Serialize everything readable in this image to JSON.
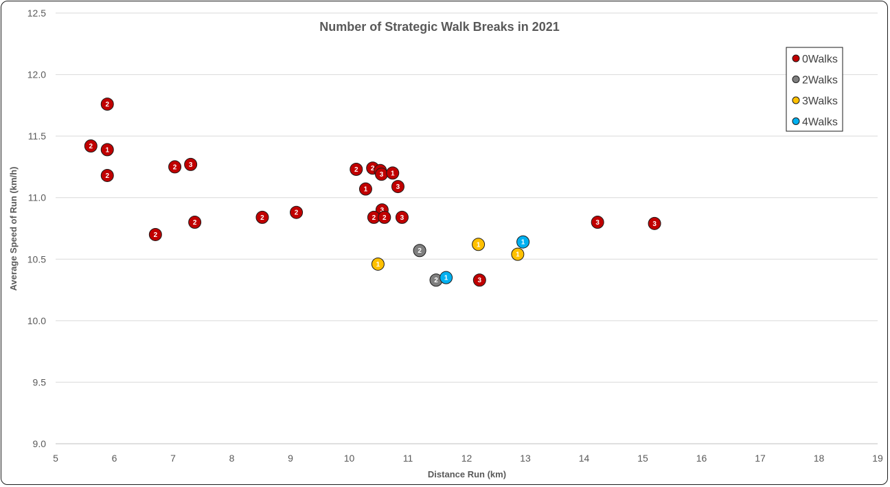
{
  "chart_data": {
    "type": "scatter",
    "title": "Number of Strategic Walk Breaks in 2021",
    "xlabel": "Distance Run (km)",
    "ylabel": "Average Speed of Run (km/h)",
    "xlim": [
      5,
      19
    ],
    "ylim": [
      9.0,
      12.5
    ],
    "x_ticks": [
      "5",
      "6",
      "7",
      "8",
      "9",
      "10",
      "11",
      "12",
      "13",
      "14",
      "15",
      "16",
      "17",
      "18",
      "19"
    ],
    "y_ticks": [
      "9.0",
      "9.5",
      "10.0",
      "10.5",
      "11.0",
      "11.5",
      "12.0",
      "12.5"
    ],
    "grid": true,
    "legend_position": "top-right",
    "series": [
      {
        "name": "0Walks",
        "color": "#c00000",
        "points": [
          {
            "x": 5.88,
            "y": 11.76,
            "label": "2"
          },
          {
            "x": 5.6,
            "y": 11.42,
            "label": "2"
          },
          {
            "x": 5.88,
            "y": 11.39,
            "label": "1"
          },
          {
            "x": 5.88,
            "y": 11.18,
            "label": "2"
          },
          {
            "x": 7.03,
            "y": 11.25,
            "label": "2"
          },
          {
            "x": 7.3,
            "y": 11.27,
            "label": "3"
          },
          {
            "x": 6.7,
            "y": 10.7,
            "label": "2"
          },
          {
            "x": 7.37,
            "y": 10.8,
            "label": "2"
          },
          {
            "x": 8.52,
            "y": 10.84,
            "label": "2"
          },
          {
            "x": 9.1,
            "y": 10.88,
            "label": "2"
          },
          {
            "x": 10.12,
            "y": 11.23,
            "label": "2"
          },
          {
            "x": 10.4,
            "y": 11.24,
            "label": "2"
          },
          {
            "x": 10.53,
            "y": 11.22,
            "label": "3"
          },
          {
            "x": 10.55,
            "y": 11.19,
            "label": "3"
          },
          {
            "x": 10.74,
            "y": 11.2,
            "label": "1"
          },
          {
            "x": 10.28,
            "y": 11.07,
            "label": "1"
          },
          {
            "x": 10.83,
            "y": 11.09,
            "label": "3"
          },
          {
            "x": 10.56,
            "y": 10.9,
            "label": "3"
          },
          {
            "x": 10.42,
            "y": 10.84,
            "label": "2"
          },
          {
            "x": 10.6,
            "y": 10.84,
            "label": "2"
          },
          {
            "x": 10.9,
            "y": 10.84,
            "label": "3"
          },
          {
            "x": 14.23,
            "y": 10.8,
            "label": "3"
          },
          {
            "x": 15.2,
            "y": 10.79,
            "label": "3"
          },
          {
            "x": 12.22,
            "y": 10.33,
            "label": "3"
          }
        ]
      },
      {
        "name": "2Walks",
        "color": "#7f7f7f",
        "points": [
          {
            "x": 11.2,
            "y": 10.57,
            "label": "2"
          },
          {
            "x": 11.48,
            "y": 10.33,
            "label": "2"
          }
        ]
      },
      {
        "name": "3Walks",
        "color": "#ffc000",
        "points": [
          {
            "x": 10.49,
            "y": 10.46,
            "label": "1"
          },
          {
            "x": 12.2,
            "y": 10.62,
            "label": "1"
          },
          {
            "x": 12.87,
            "y": 10.54,
            "label": "1"
          }
        ]
      },
      {
        "name": "4Walks",
        "color": "#00b0f0",
        "points": [
          {
            "x": 11.65,
            "y": 10.35,
            "label": "1"
          },
          {
            "x": 12.96,
            "y": 10.64,
            "label": "1"
          }
        ]
      }
    ]
  }
}
